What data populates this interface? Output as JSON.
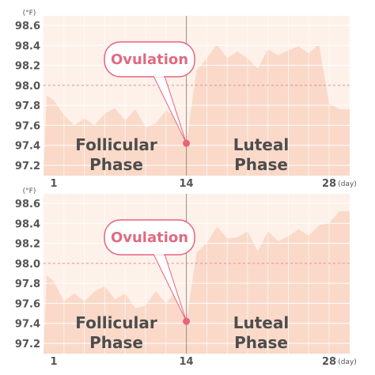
{
  "colors": {
    "background": "#fdf1ea",
    "area": "#fad9c8",
    "grid": "#ffffff",
    "reference_line": "#e58b9b",
    "ovulation": "#e9637a",
    "axis_text": "#555555",
    "phase_text": "#4d4d4d"
  },
  "chart_data": [
    {
      "type": "area",
      "y_unit": "(°F)",
      "x_unit": "(day)",
      "ylim": [
        97.2,
        98.7
      ],
      "xlim": [
        1,
        28
      ],
      "y_ticks": [
        "98.6",
        "98.4",
        "98.2",
        "98.0",
        "97.8",
        "97.6",
        "97.4",
        "97.2"
      ],
      "x_ticks": [
        "1",
        "14",
        "28"
      ],
      "reference_line": 98.0,
      "ovulation_day": 14,
      "ovulation_value": 97.42,
      "ovulation_label": "Ovulation",
      "phase_labels": {
        "follicular": [
          "Follicular",
          "Phase"
        ],
        "luteal": [
          "Luteal",
          "Phase"
        ]
      },
      "x": [
        0.3,
        1,
        2,
        3,
        4,
        5,
        6,
        7,
        8,
        9,
        10,
        11,
        12,
        13,
        14,
        15,
        16,
        17,
        18,
        19,
        20,
        21,
        22,
        23,
        24,
        25,
        26,
        27,
        28,
        29
      ],
      "y": [
        97.9,
        97.85,
        97.7,
        97.6,
        97.67,
        97.6,
        97.72,
        97.77,
        97.65,
        97.76,
        97.58,
        97.62,
        97.75,
        97.68,
        97.42,
        98.15,
        98.27,
        98.41,
        98.27,
        98.34,
        98.27,
        98.17,
        98.36,
        98.3,
        98.35,
        98.39,
        98.32,
        98.41,
        97.82,
        97.76
      ]
    },
    {
      "type": "area",
      "y_unit": "(°F)",
      "x_unit": "(day)",
      "ylim": [
        97.2,
        98.7
      ],
      "xlim": [
        1,
        28
      ],
      "y_ticks": [
        "98.6",
        "98.4",
        "98.2",
        "98.0",
        "97.8",
        "97.6",
        "97.4",
        "97.2"
      ],
      "x_ticks": [
        "1",
        "14",
        "28"
      ],
      "reference_line": 98.0,
      "ovulation_day": 14,
      "ovulation_value": 97.42,
      "ovulation_label": "Ovulation",
      "phase_labels": {
        "follicular": [
          "Follicular",
          "Phase"
        ],
        "luteal": [
          "Luteal",
          "Phase"
        ]
      },
      "x": [
        0.3,
        1,
        2,
        3,
        4,
        5,
        6,
        7,
        8,
        9,
        10,
        11,
        12,
        13,
        14,
        15,
        16,
        17,
        18,
        19,
        20,
        21,
        22,
        23,
        24,
        25,
        26,
        27,
        28,
        29
      ],
      "y": [
        97.88,
        97.82,
        97.62,
        97.7,
        97.62,
        97.72,
        97.77,
        97.64,
        97.7,
        97.55,
        97.58,
        97.72,
        97.6,
        97.72,
        97.42,
        98.11,
        98.2,
        98.37,
        98.25,
        98.26,
        98.32,
        98.12,
        98.32,
        98.22,
        98.27,
        98.34,
        98.28,
        98.38,
        98.4,
        98.52
      ]
    }
  ]
}
